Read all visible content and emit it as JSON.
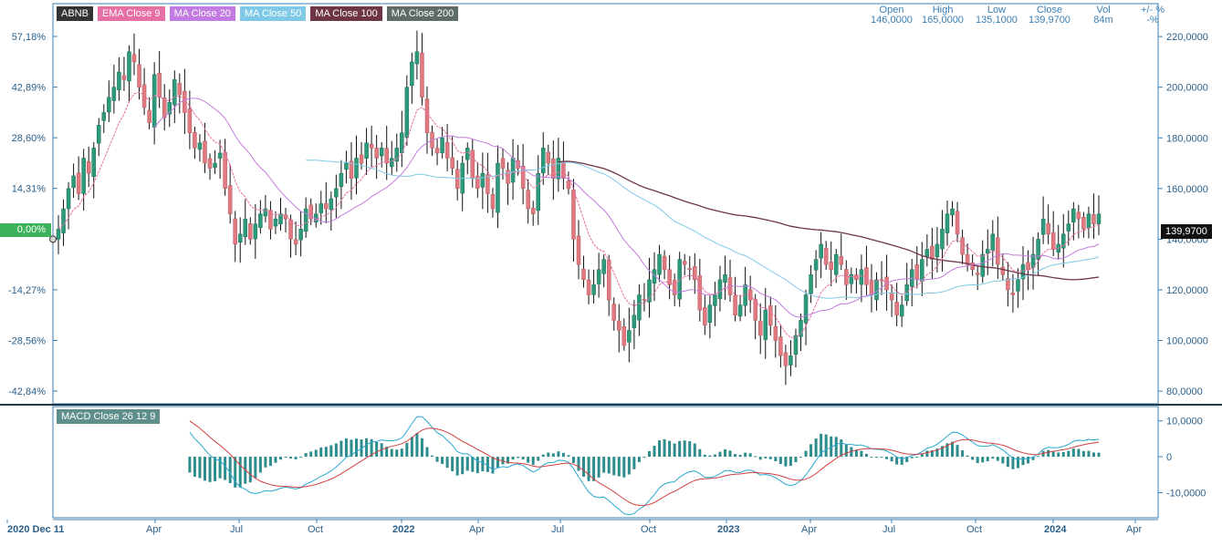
{
  "symbol": "ABNB",
  "legend": [
    {
      "label": "ABNB",
      "color": "#333333"
    },
    {
      "label": "EMA Close 9",
      "color": "#e86fa6"
    },
    {
      "label": "MA Close 20",
      "color": "#c27be0"
    },
    {
      "label": "MA Close 50",
      "color": "#7fc9e6"
    },
    {
      "label": "MA Close 100",
      "color": "#6e3545"
    },
    {
      "label": "MA Close 200",
      "color": "#5f6b68"
    }
  ],
  "ohlc": {
    "open": {
      "label": "Open",
      "value": "146,0000"
    },
    "high": {
      "label": "High",
      "value": "165,0000"
    },
    "low": {
      "label": "Low",
      "value": "135,1000"
    },
    "close": {
      "label": "Close",
      "value": "139,9700"
    },
    "vol": {
      "label": "Vol",
      "value": "84m"
    },
    "change": {
      "label": "+/- %",
      "value": "-%"
    }
  },
  "last_price": "139,9700",
  "zero_label": "0,00%",
  "macd_label": "MACD Close 26 12 9",
  "colors": {
    "up": "#2e9a7c",
    "down": "#e07a80",
    "wick": "#111111",
    "ema9": "#e86fa6",
    "ma20": "#c27be0",
    "ma50": "#7fc9e6",
    "ma100": "#6e3545",
    "macd_line": "#2aa7cf",
    "signal": "#d04040",
    "hist": "#2e8c8c",
    "axis": "#3b7fb3",
    "pct_axis": "#2a5f8a"
  },
  "chart_data": {
    "type": "candlestick",
    "price_axis": {
      "ticks": [
        "220,0000",
        "200,0000",
        "180,0000",
        "160,0000",
        "140,0000",
        "120,0000",
        "100,0000",
        "80,0000"
      ],
      "values": [
        220,
        200,
        180,
        160,
        140,
        120,
        100,
        80
      ],
      "range": [
        75,
        233
      ]
    },
    "pct_axis": {
      "ticks": [
        "57,18%",
        "42,89%",
        "28,60%",
        "14,31%",
        "0,00%",
        "-14,27%",
        "-28,56%",
        "-42,84%"
      ],
      "values": [
        57.18,
        42.89,
        28.6,
        14.31,
        0,
        -14.27,
        -28.56,
        -42.84
      ]
    },
    "x_axis": {
      "labels": [
        "2020 Dec 11",
        "Apr",
        "Jul",
        "Oct",
        "2022",
        "Apr",
        "Jul",
        "Oct",
        "2023",
        "Apr",
        "Jul",
        "Oct",
        "2024",
        "Apr"
      ]
    },
    "macd_axis": {
      "ticks": [
        "10,0000",
        "0",
        "-10,0000"
      ],
      "values": [
        10,
        0,
        -10
      ],
      "range": [
        -17,
        14
      ]
    },
    "weekly_close": [
      144,
      152,
      160,
      165,
      158,
      172,
      166,
      176,
      185,
      190,
      196,
      200,
      206,
      203,
      214,
      210,
      200,
      192,
      186,
      205,
      196,
      188,
      194,
      203,
      197,
      190,
      182,
      176,
      178,
      170,
      168,
      170,
      174,
      160,
      150,
      138,
      142,
      148,
      140,
      146,
      150,
      152,
      144,
      148,
      150,
      148,
      140,
      138,
      144,
      152,
      148,
      150,
      154,
      152,
      156,
      160,
      166,
      170,
      164,
      172,
      170,
      178,
      176,
      172,
      176,
      170,
      172,
      176,
      182,
      200,
      210,
      214,
      196,
      182,
      176,
      174,
      180,
      172,
      168,
      160,
      170,
      176,
      164,
      160,
      166,
      158,
      152,
      170,
      168,
      162,
      172,
      168,
      160,
      152,
      150,
      166,
      176,
      170,
      164,
      172,
      164,
      160,
      140,
      130,
      124,
      118,
      122,
      128,
      132,
      116,
      108,
      104,
      98,
      104,
      110,
      118,
      116,
      124,
      128,
      134,
      128,
      122,
      118,
      132,
      130,
      128,
      124,
      112,
      106,
      114,
      118,
      124,
      126,
      118,
      110,
      114,
      122,
      116,
      108,
      102,
      112,
      106,
      100,
      94,
      90,
      94,
      102,
      108,
      118,
      126,
      132,
      138,
      130,
      128,
      134,
      130,
      122,
      126,
      124,
      128,
      122,
      118,
      124,
      124,
      120,
      116,
      110,
      114,
      122,
      128,
      124,
      132,
      136,
      132,
      138,
      144,
      150,
      152,
      142,
      134,
      130,
      128,
      126,
      134,
      136,
      142,
      130,
      126,
      120,
      118,
      124,
      130,
      128,
      134,
      140,
      148,
      142,
      136,
      138,
      142,
      146,
      152,
      148,
      144,
      150,
      146,
      150
    ]
  }
}
